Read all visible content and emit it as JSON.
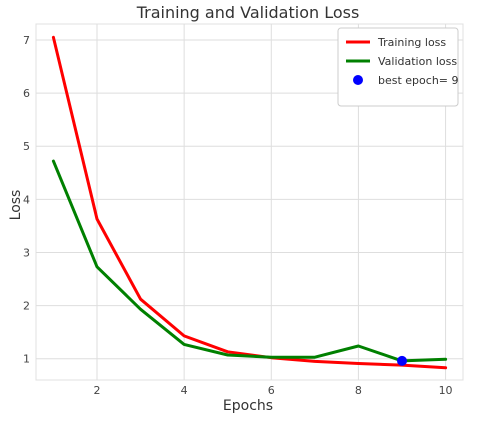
{
  "chart_data": {
    "type": "line",
    "title": "Training and Validation Loss",
    "xlabel": "Epochs",
    "ylabel": "Loss",
    "xlim": [
      0.6,
      10.4
    ],
    "ylim": [
      0.6,
      7.3
    ],
    "x_ticks": [
      2,
      4,
      6,
      8,
      10
    ],
    "y_ticks": [
      1,
      2,
      3,
      4,
      5,
      6,
      7
    ],
    "grid": true,
    "legend_position": "top-right",
    "x": [
      1,
      2,
      3,
      4,
      5,
      6,
      7,
      8,
      9,
      10
    ],
    "series": [
      {
        "name": "Training loss",
        "color": "#ff0000",
        "values": [
          7.05,
          3.63,
          2.12,
          1.43,
          1.13,
          1.02,
          0.95,
          0.91,
          0.88,
          0.83
        ]
      },
      {
        "name": "Validation loss",
        "color": "#008000",
        "values": [
          4.72,
          2.73,
          1.93,
          1.27,
          1.07,
          1.03,
          1.03,
          1.24,
          0.96,
          0.99
        ]
      }
    ],
    "best_point": {
      "name": "best epoch= 9",
      "x": 9,
      "y": 0.96,
      "color": "#0000ff"
    }
  }
}
